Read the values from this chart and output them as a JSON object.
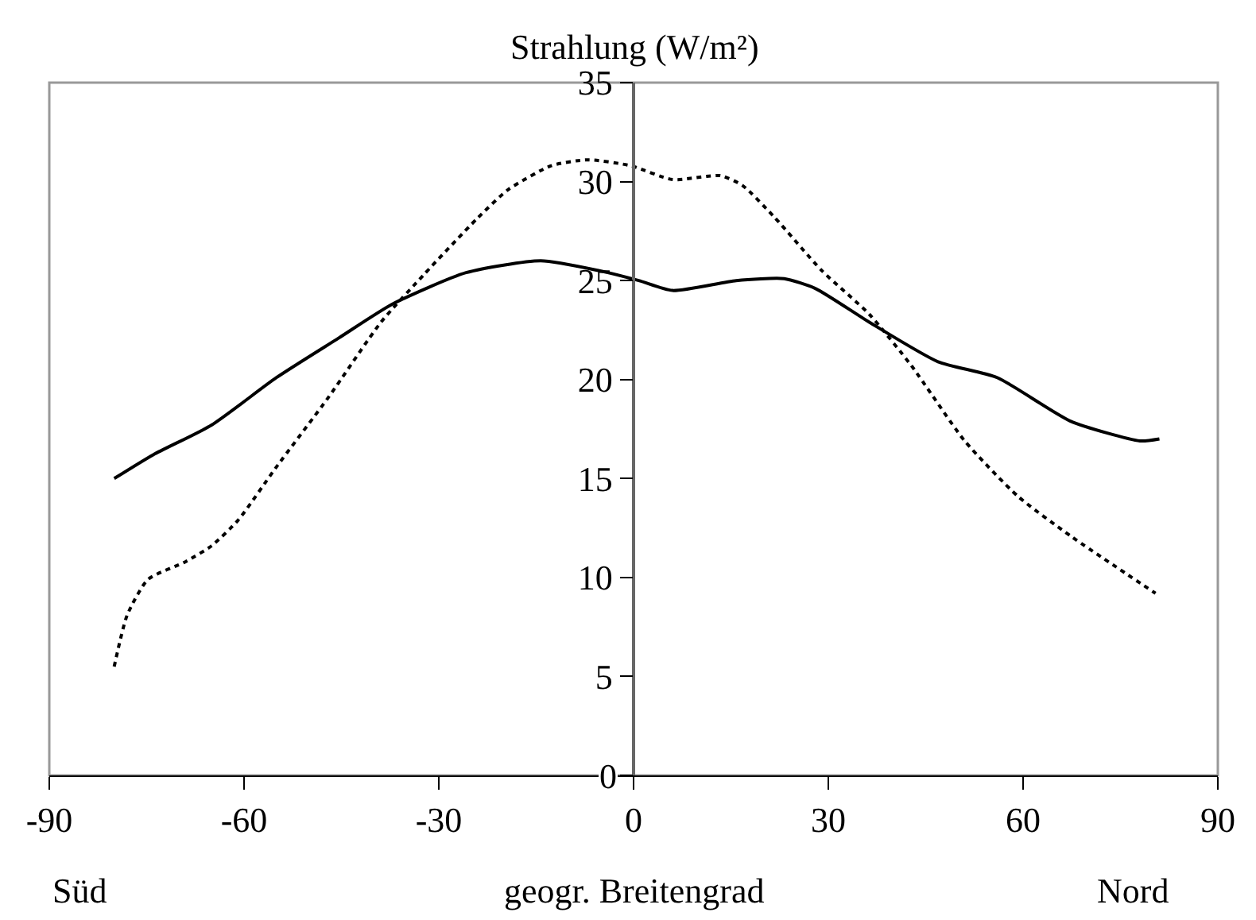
{
  "chart_data": {
    "type": "line",
    "title": "Strahlung (W/m²)",
    "xlabel": "geogr. Breitengrad",
    "annotations": [
      "Süd",
      "Nord"
    ],
    "xlim": [
      -90,
      90
    ],
    "xticks": [
      -90,
      -60,
      -30,
      0,
      30,
      60,
      90
    ],
    "ylim": [
      0,
      35
    ],
    "yticks": [
      0,
      5,
      10,
      15,
      20,
      25,
      30,
      35
    ],
    "grid": false,
    "marker": "none",
    "series": [
      {
        "color": "#000000",
        "line_style": "solid",
        "x": [
          -80,
          -74,
          -65,
          -55,
          -45.4,
          -37.2,
          -25.8,
          -14.3,
          -5.3,
          0.8,
          6,
          15.8,
          23.2,
          28,
          36.3,
          46.9,
          56,
          67.3,
          78,
          81
        ],
        "values": [
          15.0,
          16.2,
          17.7,
          20.1,
          22.1,
          23.8,
          25.4,
          26.0,
          25.5,
          25.0,
          24.5,
          25.0,
          25.1,
          24.6,
          22.9,
          20.9,
          20.1,
          17.9,
          16.9,
          17.0
        ]
      },
      {
        "color": "#000000",
        "line_style": "dotted",
        "x": [
          -80,
          -78,
          -74.8,
          -69,
          -65,
          -60.9,
          -55.2,
          -47,
          -38.9,
          -32.3,
          -24.2,
          -19.3,
          -12.7,
          -7,
          -0.4,
          6,
          13.4,
          16.8,
          21.7,
          29,
          36.3,
          42.8,
          51,
          59.2,
          67.3,
          80.4
        ],
        "values": [
          5.5,
          8.1,
          9.9,
          10.8,
          11.6,
          12.9,
          15.5,
          19.1,
          22.9,
          25.3,
          28.1,
          29.6,
          30.8,
          31.1,
          30.8,
          30.1,
          30.3,
          29.8,
          28.2,
          25.5,
          23.3,
          20.7,
          16.9,
          14.1,
          12.1,
          9.2
        ]
      }
    ]
  }
}
